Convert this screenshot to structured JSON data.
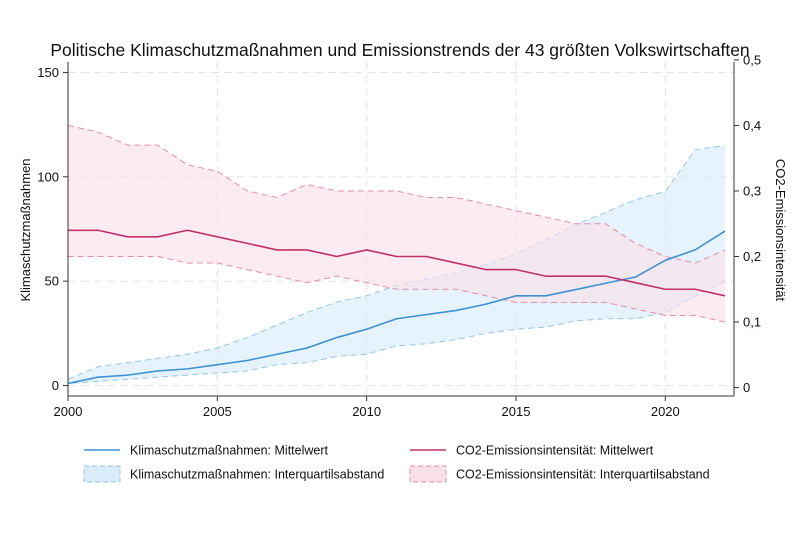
{
  "chart_data": {
    "type": "line",
    "title": "Politische Klimaschutzmaßnahmen und Emissionstrends der 43 größten Volkswirtschaften",
    "ylabel": "Klimaschutzmaßnahmen",
    "y2label": "CO2-Emissionsintensität",
    "x": [
      2000,
      2001,
      2002,
      2003,
      2004,
      2005,
      2006,
      2007,
      2008,
      2009,
      2010,
      2011,
      2012,
      2013,
      2014,
      2015,
      2016,
      2017,
      2018,
      2019,
      2020,
      2021,
      2022
    ],
    "xlim": [
      2000,
      2022.3
    ],
    "ylim": [
      -5,
      155
    ],
    "y2lim": [
      -0.0129,
      0.4968
    ],
    "xticks": [
      {
        "v": 2000,
        "label": "2000"
      },
      {
        "v": 2005,
        "label": "2005"
      },
      {
        "v": 2010,
        "label": "2010"
      },
      {
        "v": 2015,
        "label": "2015"
      },
      {
        "v": 2020,
        "label": "2020"
      }
    ],
    "yticks": [
      {
        "v": 0,
        "label": "0"
      },
      {
        "v": 50,
        "label": "50"
      },
      {
        "v": 100,
        "label": "100"
      },
      {
        "v": 150,
        "label": "150"
      }
    ],
    "y2ticks": [
      {
        "v": 0,
        "label": "0"
      },
      {
        "v": 0.1,
        "label": "0,1"
      },
      {
        "v": 0.2,
        "label": "0,2"
      },
      {
        "v": 0.3,
        "label": "0,3"
      },
      {
        "v": 0.4,
        "label": "0,4"
      },
      {
        "v": 0.5,
        "label": "0,5"
      }
    ],
    "grid": true,
    "legend_position": "bottom",
    "series": [
      {
        "name": "Klimaschutzmaßnahmen: Interquartilsabstand",
        "type": "band",
        "axis": "left",
        "color": "#d9ecfa",
        "edge_color": "#92c6ec",
        "lower": [
          1,
          2,
          3,
          4,
          5,
          6,
          7,
          10,
          11,
          14,
          15,
          19,
          20,
          22,
          25,
          27,
          28,
          31,
          32,
          32,
          35,
          43,
          50
        ],
        "upper": [
          3,
          9,
          11,
          13,
          15,
          18,
          23,
          29,
          35,
          40,
          43,
          48,
          51,
          54,
          58,
          63,
          70,
          77,
          83,
          89,
          93,
          113,
          115
        ]
      },
      {
        "name": "CO2-Emissionsintensität: Interquartilsabstand",
        "type": "band",
        "axis": "right",
        "color": "#fae1e8",
        "edge_color": "#e98aa6",
        "lower": [
          0.2,
          0.2,
          0.2,
          0.2,
          0.19,
          0.19,
          0.18,
          0.17,
          0.16,
          0.17,
          0.16,
          0.15,
          0.15,
          0.15,
          0.14,
          0.13,
          0.13,
          0.13,
          0.13,
          0.12,
          0.11,
          0.11,
          0.1
        ],
        "upper": [
          0.4,
          0.39,
          0.37,
          0.37,
          0.34,
          0.33,
          0.3,
          0.29,
          0.31,
          0.3,
          0.3,
          0.3,
          0.29,
          0.29,
          0.28,
          0.27,
          0.26,
          0.25,
          0.25,
          0.22,
          0.2,
          0.19,
          0.21
        ]
      },
      {
        "name": "Klimaschutzmaßnahmen: Mittelwert",
        "type": "line",
        "axis": "left",
        "color": "#3e92d2",
        "values": [
          1,
          4,
          5,
          7,
          8,
          10,
          12,
          15,
          18,
          23,
          27,
          32,
          34,
          36,
          39,
          43,
          43,
          46,
          49,
          52,
          60,
          65,
          74
        ]
      },
      {
        "name": "CO2-Emissionsintensität: Mittelwert",
        "type": "line",
        "axis": "right",
        "color": "#c2306b",
        "values": [
          0.24,
          0.24,
          0.23,
          0.23,
          0.24,
          0.23,
          0.22,
          0.21,
          0.21,
          0.2,
          0.21,
          0.2,
          0.2,
          0.19,
          0.18,
          0.18,
          0.17,
          0.17,
          0.17,
          0.16,
          0.15,
          0.15,
          0.14
        ]
      }
    ],
    "legend": [
      {
        "series": 2,
        "kind": "line"
      },
      {
        "series": 3,
        "kind": "line"
      },
      {
        "series": 0,
        "kind": "band"
      },
      {
        "series": 1,
        "kind": "band"
      }
    ]
  }
}
